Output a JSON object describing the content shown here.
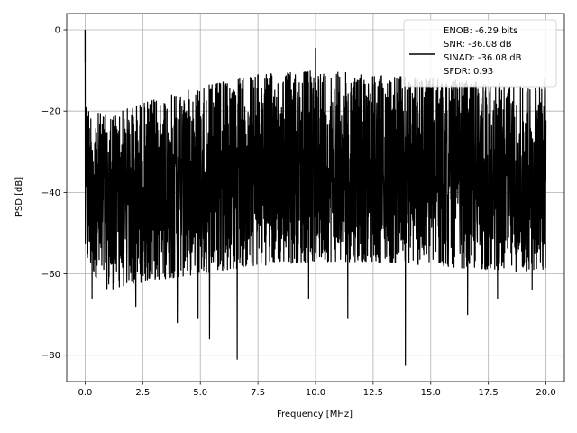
{
  "chart_data": {
    "type": "line",
    "title": "",
    "xlabel": "Frequency [MHz]",
    "ylabel": "PSD [dB]",
    "xlim": [
      -0.8,
      20.8
    ],
    "ylim": [
      -86.5,
      4
    ],
    "x_ticks": [
      0.0,
      2.5,
      5.0,
      7.5,
      10.0,
      12.5,
      15.0,
      17.5,
      20.0
    ],
    "x_tick_labels": [
      "0.0",
      "2.5",
      "5.0",
      "7.5",
      "10.0",
      "12.5",
      "15.0",
      "17.5",
      "20.0"
    ],
    "y_ticks": [
      0,
      -20,
      -40,
      -60,
      -80
    ],
    "y_tick_labels": [
      "0",
      "−20",
      "−40",
      "−60",
      "−80"
    ],
    "grid": true,
    "legend_position": "top-right",
    "series": [
      {
        "name": "ENOB: -6.29 bits\nSNR: -36.08 dB\nSINAD: -36.08 dB\nSFDR: 0.93",
        "color": "#000000",
        "x_range": [
          0,
          20
        ],
        "upper_envelope": {
          "x": [
            0,
            0.2,
            1,
            2.5,
            5,
            7.5,
            10,
            12.5,
            15,
            17.5,
            20
          ],
          "y": [
            -16,
            -20,
            -21,
            -18,
            -14,
            -11,
            -10,
            -11,
            -12,
            -13,
            -14
          ]
        },
        "lower_envelope": {
          "x": [
            0,
            1,
            2.5,
            5,
            7.5,
            10,
            12.5,
            15,
            17.5,
            20
          ],
          "y": [
            -58,
            -64,
            -62,
            -60,
            -58,
            -57,
            -57,
            -58,
            -59,
            -60
          ]
        },
        "spikes": [
          {
            "x": 0.0,
            "y": 0
          },
          {
            "x": 10.0,
            "y": -4.5
          },
          {
            "x": 19.95,
            "y": -12
          }
        ],
        "dips": [
          {
            "x": 0.3,
            "y": -66
          },
          {
            "x": 2.2,
            "y": -68
          },
          {
            "x": 4.0,
            "y": -72
          },
          {
            "x": 4.9,
            "y": -71
          },
          {
            "x": 5.4,
            "y": -76
          },
          {
            "x": 6.6,
            "y": -81
          },
          {
            "x": 9.7,
            "y": -66
          },
          {
            "x": 11.4,
            "y": -71
          },
          {
            "x": 13.9,
            "y": -82.5
          },
          {
            "x": 16.6,
            "y": -70
          },
          {
            "x": 17.9,
            "y": -66
          },
          {
            "x": 19.4,
            "y": -64
          }
        ]
      }
    ]
  }
}
